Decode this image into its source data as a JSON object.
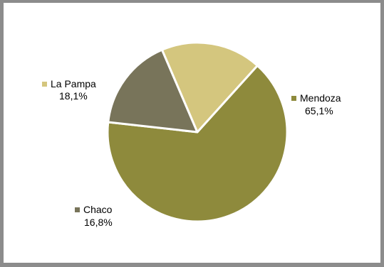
{
  "chart_data": {
    "type": "pie",
    "categories": [
      "Mendoza",
      "Chaco",
      "La Pampa"
    ],
    "values": [
      65.1,
      16.8,
      18.1
    ],
    "value_labels": [
      "65,1%",
      "16,8%",
      "18,1%"
    ],
    "colors": [
      "#8e8a3c",
      "#78745a",
      "#d4c67e"
    ],
    "title": "",
    "legend": "labels beside slices"
  }
}
